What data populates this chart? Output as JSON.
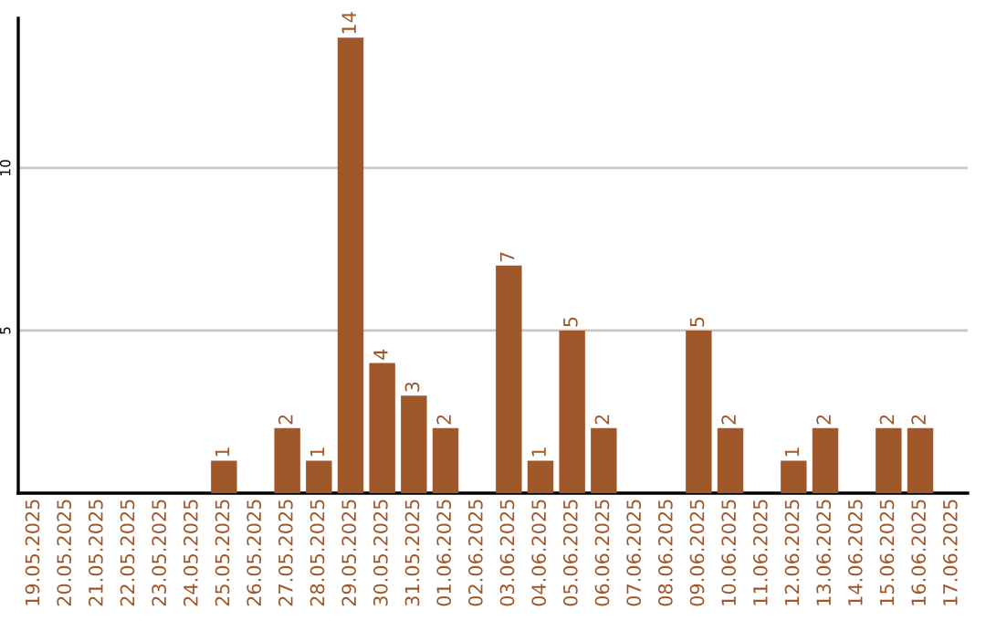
{
  "chart_data": {
    "type": "bar",
    "categories": [
      "19.05.2025",
      "20.05.2025",
      "21.05.2025",
      "22.05.2025",
      "23.05.2025",
      "24.05.2025",
      "25.05.2025",
      "26.05.2025",
      "27.05.2025",
      "28.05.2025",
      "29.05.2025",
      "30.05.2025",
      "31.05.2025",
      "01.06.2025",
      "02.06.2025",
      "03.06.2025",
      "04.06.2025",
      "05.06.2025",
      "06.06.2025",
      "07.06.2025",
      "08.06.2025",
      "09.06.2025",
      "10.06.2025",
      "11.06.2025",
      "12.06.2025",
      "13.06.2025",
      "14.06.2025",
      "15.06.2025",
      "16.06.2025",
      "17.06.2025"
    ],
    "values": [
      0,
      0,
      0,
      0,
      0,
      0,
      1,
      0,
      2,
      1,
      14,
      4,
      3,
      2,
      0,
      7,
      1,
      5,
      2,
      0,
      0,
      5,
      2,
      0,
      1,
      2,
      0,
      2,
      2,
      0
    ],
    "value_labels": [
      null,
      null,
      null,
      null,
      null,
      null,
      "1",
      null,
      "2",
      "1",
      "14",
      "4",
      "3",
      "2",
      null,
      "7",
      "1",
      "5",
      "2",
      null,
      null,
      "5",
      "2",
      null,
      "1",
      "2",
      null,
      "2",
      "2",
      null
    ],
    "color": "#a0582a",
    "ylim": [
      0,
      14.6
    ],
    "yticks": [
      5,
      10
    ],
    "grid": "y",
    "legend": false
  }
}
